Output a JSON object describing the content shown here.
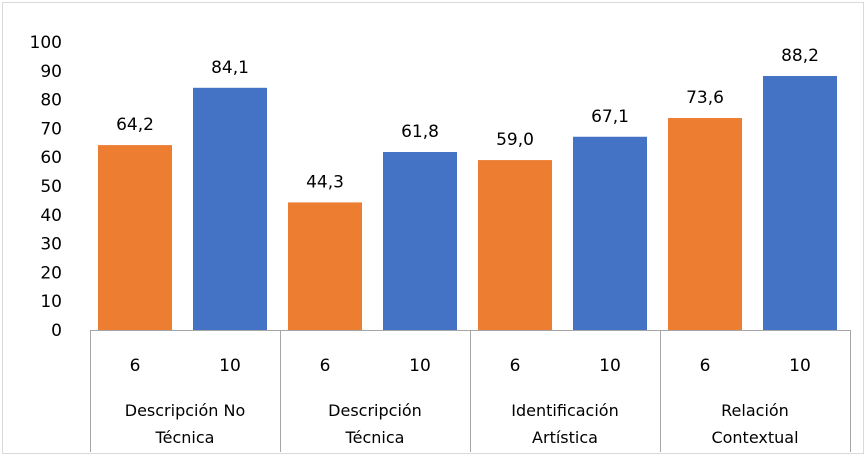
{
  "chart_data": {
    "type": "bar",
    "ylim": [
      0,
      100
    ],
    "yticks": [
      "0",
      "10",
      "20",
      "30",
      "40",
      "50",
      "60",
      "70",
      "80",
      "90",
      "100"
    ],
    "groups": [
      {
        "label_lines": [
          "Descripción No",
          "Técnica"
        ],
        "bars": [
          {
            "sublabel": "6",
            "value": 64.2,
            "value_label": "64,2",
            "color": "#ED7D31"
          },
          {
            "sublabel": "10",
            "value": 84.1,
            "value_label": "84,1",
            "color": "#4472C4"
          }
        ]
      },
      {
        "label_lines": [
          "Descripción",
          "Técnica"
        ],
        "bars": [
          {
            "sublabel": "6",
            "value": 44.3,
            "value_label": "44,3",
            "color": "#ED7D31"
          },
          {
            "sublabel": "10",
            "value": 61.8,
            "value_label": "61,8",
            "color": "#4472C4"
          }
        ]
      },
      {
        "label_lines": [
          "Identificación",
          "Artística"
        ],
        "bars": [
          {
            "sublabel": "6",
            "value": 59.0,
            "value_label": "59,0",
            "color": "#ED7D31"
          },
          {
            "sublabel": "10",
            "value": 67.1,
            "value_label": "67,1",
            "color": "#4472C4"
          }
        ]
      },
      {
        "label_lines": [
          "Relación",
          "Contextual"
        ],
        "bars": [
          {
            "sublabel": "6",
            "value": 73.6,
            "value_label": "73,6",
            "color": "#ED7D31"
          },
          {
            "sublabel": "10",
            "value": 88.2,
            "value_label": "88,2",
            "color": "#4472C4"
          }
        ]
      }
    ],
    "grid": false,
    "legend": "none"
  }
}
